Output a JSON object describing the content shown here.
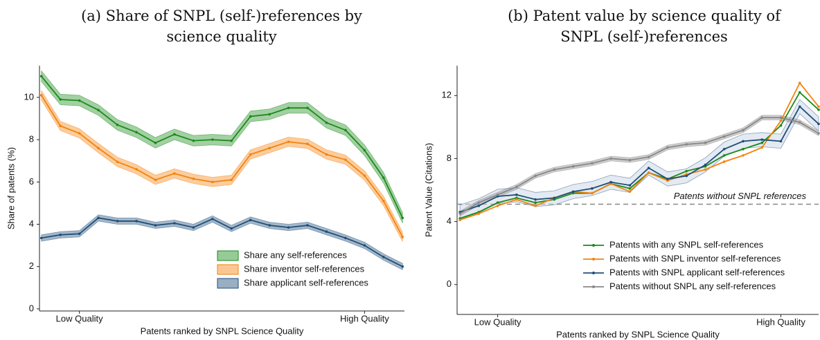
{
  "chart_data": [
    {
      "type": "line",
      "title": "(a) Share of SNPL (self-)references by science quality",
      "x_label": "Patents ranked by SNPL Science Quality",
      "y_label": "Share of patents (%)",
      "x": [
        1,
        2,
        3,
        4,
        5,
        6,
        7,
        8,
        9,
        10,
        11,
        12,
        13,
        14,
        15,
        16,
        17,
        18,
        19,
        20
      ],
      "xlim": [
        0.9,
        20.1
      ],
      "xticks": [
        {
          "value": 3,
          "label": "Low Quality"
        },
        {
          "value": 18,
          "label": "High Quality"
        }
      ],
      "ylim": [
        -0.1,
        11.5
      ],
      "yticks": [
        0,
        2,
        4,
        6,
        8,
        10
      ],
      "legend": "lower right",
      "legend_style": "patch",
      "series": [
        {
          "name": "Share any self-references",
          "color": "#1a8a1a",
          "error": 0.25,
          "values": [
            11.0,
            9.9,
            9.85,
            9.4,
            8.7,
            8.35,
            7.85,
            8.25,
            7.95,
            8.0,
            7.95,
            9.1,
            9.2,
            9.5,
            9.5,
            8.8,
            8.45,
            7.5,
            6.2,
            4.3
          ]
        },
        {
          "name": "Share inventor self-references",
          "color": "#f5820d",
          "error": 0.22,
          "values": [
            10.1,
            8.65,
            8.3,
            7.6,
            6.95,
            6.6,
            6.1,
            6.4,
            6.15,
            6.0,
            6.1,
            7.3,
            7.6,
            7.9,
            7.8,
            7.3,
            7.05,
            6.3,
            5.1,
            3.4
          ]
        },
        {
          "name": "Share applicant self-references",
          "color": "#1f4e79",
          "error": 0.15,
          "values": [
            3.35,
            3.5,
            3.55,
            4.3,
            4.15,
            4.15,
            3.95,
            4.05,
            3.85,
            4.25,
            3.8,
            4.2,
            3.95,
            3.85,
            3.95,
            3.65,
            3.35,
            3.0,
            2.45,
            2.0
          ]
        }
      ]
    },
    {
      "type": "line",
      "title": "(b) Patent value by science quality of SNPL (self-)references",
      "x_label": "Patents ranked by SNPL Science Quality",
      "y_label": "Patent Value (Citations)",
      "x": [
        1,
        2,
        3,
        4,
        5,
        6,
        7,
        8,
        9,
        10,
        11,
        12,
        13,
        14,
        15,
        16,
        17,
        18,
        19,
        20
      ],
      "xlim": [
        0.85,
        20.0
      ],
      "xticks": [
        {
          "value": 3,
          "label": "Low Quality"
        },
        {
          "value": 18,
          "label": "High Quality"
        }
      ],
      "ylim": [
        -1.9,
        13.9
      ],
      "yticks": [
        0,
        4,
        8,
        12
      ],
      "legend": "lower right",
      "legend_style": "line",
      "hline": {
        "value": 5.1,
        "label": "Patents without SNPL references",
        "color": "#888888"
      },
      "series": [
        {
          "name": "Patents with any SNPL self-references",
          "color": "#1a8a1a",
          "values": [
            4.2,
            4.6,
            5.2,
            5.5,
            5.2,
            5.4,
            5.8,
            5.8,
            6.4,
            6.1,
            7.1,
            6.7,
            7.2,
            7.5,
            8.2,
            8.6,
            9.0,
            10.1,
            12.2,
            11.1
          ]
        },
        {
          "name": "Patents with SNPL inventor self-references",
          "color": "#f5820d",
          "values": [
            4.1,
            4.5,
            5.0,
            5.4,
            5.0,
            5.5,
            5.9,
            5.8,
            6.4,
            5.9,
            7.1,
            6.6,
            7.0,
            7.3,
            7.8,
            8.2,
            8.7,
            10.4,
            12.8,
            11.3
          ]
        },
        {
          "name": "Patents with SNPL applicant self-references",
          "color": "#1f4e79",
          "error": 0.45,
          "values": [
            4.6,
            5.0,
            5.6,
            5.7,
            5.4,
            5.5,
            5.9,
            6.1,
            6.5,
            6.3,
            7.4,
            6.7,
            6.9,
            7.6,
            8.6,
            9.1,
            9.2,
            9.1,
            11.3,
            10.2
          ]
        },
        {
          "name": "Patents without SNPL any self-references",
          "color": "#888888",
          "error": 0.15,
          "values": [
            4.5,
            5.2,
            5.7,
            6.2,
            6.9,
            7.3,
            7.5,
            7.7,
            8.0,
            7.9,
            8.1,
            8.7,
            8.9,
            9.0,
            9.4,
            9.8,
            10.6,
            10.6,
            10.3,
            9.6
          ]
        }
      ]
    }
  ]
}
